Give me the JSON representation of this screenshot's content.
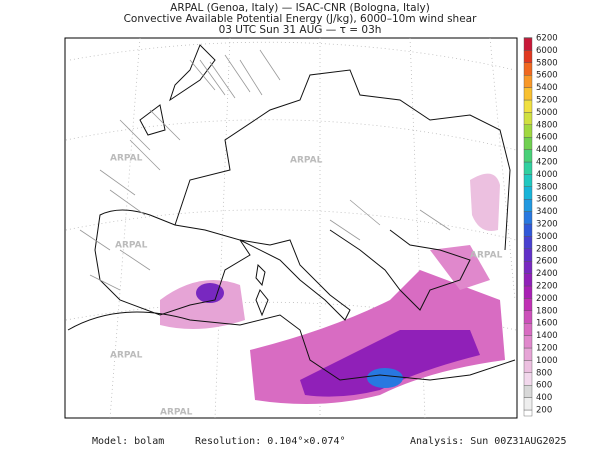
{
  "header": {
    "lines": [
      "ARPAL (Genoa, Italy)  —  ISAC-CNR (Bologna, Italy)",
      "Convective Available Potential Energy (J/kg), 6000–10m wind shear",
      "03 UTC Sun 31 AUG  —  τ = 03h"
    ]
  },
  "watermark": "ARPAL",
  "colorbar": {
    "labels": [
      "200",
      "400",
      "600",
      "800",
      "1000",
      "1200",
      "1400",
      "1600",
      "1800",
      "2000",
      "2200",
      "2400",
      "2600",
      "2800",
      "3000",
      "3200",
      "3400",
      "3600",
      "3800",
      "4000",
      "4200",
      "4400",
      "4600",
      "4800",
      "5000",
      "5200",
      "5400",
      "5600",
      "5800",
      "6000",
      "6200"
    ],
    "colors": [
      "#ffffff",
      "#eeeeee",
      "#d8d8d8",
      "#f2d8ec",
      "#ecc0e0",
      "#e6a4d6",
      "#e088cc",
      "#d86cc2",
      "#cc50ba",
      "#c030b4",
      "#a820b4",
      "#9020b8",
      "#7828c0",
      "#6030c8",
      "#4840d0",
      "#3058d8",
      "#2878e0",
      "#2098e0",
      "#18b4d8",
      "#20c8c0",
      "#30d0a0",
      "#48d078",
      "#70d050",
      "#a0d840",
      "#d0e040",
      "#f0e040",
      "#f8c030",
      "#f89828",
      "#f06820",
      "#e03820",
      "#c81838",
      "#a01858"
    ]
  },
  "footer": {
    "model": "Model: bolam",
    "resolution": "Resolution: 0.104°×0.074°",
    "analysis": "Analysis: Sun 00Z31AUG2025"
  }
}
